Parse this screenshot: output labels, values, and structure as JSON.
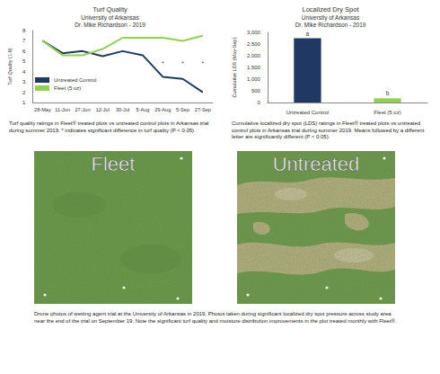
{
  "chart_data": [
    {
      "type": "line",
      "title": "Turf Quality",
      "subtitle": "University of Arkansas\nDr. Mike Richardson - 2019",
      "y_label": "Turf Quality (1-9)",
      "categories": [
        "28-May",
        "11-Jun",
        "27-Jun",
        "12-Jul",
        "30-Jul",
        "5-Aug",
        "29-Aug",
        "5-Sep",
        "27-Sep"
      ],
      "series": [
        {
          "name": "Untreated Control",
          "color": "#1f3864",
          "marker": "none",
          "values": [
            7,
            5.8,
            6,
            5.5,
            6,
            5.6,
            3.5,
            3.3,
            2
          ]
        },
        {
          "name": "Fleet (5 oz)",
          "color": "#92d050",
          "marker": "none",
          "values": [
            7,
            5.6,
            5.6,
            6.2,
            7.3,
            7.3,
            7.3,
            7,
            7.5
          ]
        }
      ],
      "annotations": [
        {
          "x": "29-Aug",
          "y": 4.8,
          "text": "*"
        },
        {
          "x": "5-Sep",
          "y": 4.8,
          "text": "*"
        },
        {
          "x": "27-Sep",
          "y": 4.8,
          "text": "*"
        }
      ],
      "ylim": [
        1,
        8
      ],
      "yticks": [
        1,
        2,
        3,
        4,
        5,
        6,
        7,
        8
      ],
      "grid": false,
      "legend": "lower left",
      "caption": "Turf quality ratings in Fleet® treated plots vs untreated control plots in Arkansas trial during summer 2019. * indicates significant difference in turf quality (P < 0.05)."
    },
    {
      "type": "bar",
      "title": "Localized Dry Spot",
      "subtitle": "University of Arkansas\nDr. Mike Richardson - 2019",
      "y_label": "Cumulative LDS (May-Sep)",
      "categories": [
        "Untreated Control",
        "Fleet (5 oz)"
      ],
      "values": [
        2750,
        180
      ],
      "colors": [
        "#1f3864",
        "#92d050"
      ],
      "mean_letters": [
        "a",
        "b"
      ],
      "ylim": [
        0,
        3000
      ],
      "yticks": [
        0,
        500,
        1000,
        1500,
        2000,
        2500,
        3000
      ],
      "grid": false,
      "caption": "Cumulative localized dry spot (LDS) ratings in Fleet® treated plots vs untreated control plots in Arkansas trial during summer 2019. Means followed by a different letter are significantly different (P < 0.05)."
    }
  ],
  "photos": [
    {
      "label": "Fleet",
      "dry_spots": false
    },
    {
      "label": "Untreated",
      "dry_spots": true
    }
  ],
  "photo_caption": "Drone photos of wetting agent trial at the University of Arkansas in 2019. Photos taken during significant localized dry spot pressure across study area near the end of the trial on September 19. Note the significant turf quality and moisture distribution improvements in the plot treated monthly with Fleet®."
}
